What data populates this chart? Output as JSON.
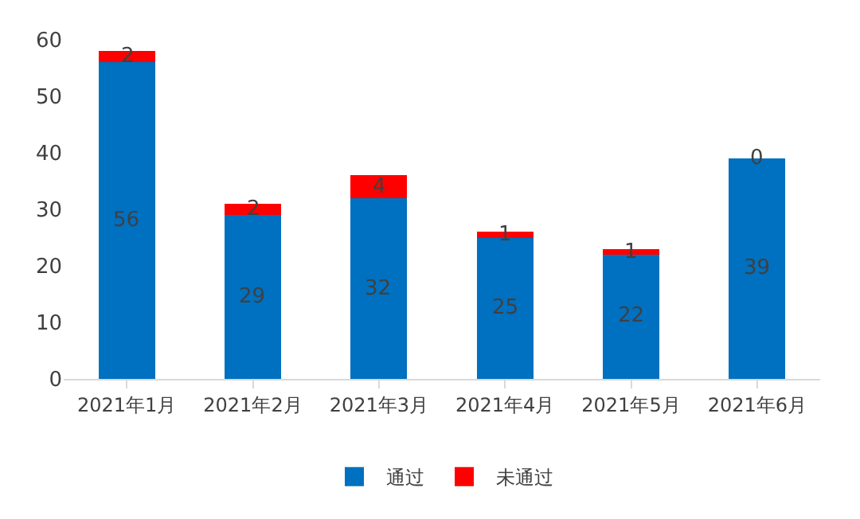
{
  "chart_data": {
    "type": "bar",
    "stacked": true,
    "categories": [
      "2021年1月",
      "2021年2月",
      "2021年3月",
      "2021年4月",
      "2021年5月",
      "2021年6月"
    ],
    "series": [
      {
        "name": "通过",
        "color": "#0070c0",
        "values": [
          56,
          29,
          32,
          25,
          22,
          39
        ]
      },
      {
        "name": "未通过",
        "color": "#ff0000",
        "values": [
          2,
          2,
          4,
          1,
          1,
          0
        ]
      }
    ],
    "ylim": [
      0,
      60
    ],
    "yticks": [
      0,
      10,
      20,
      30,
      40,
      50,
      60
    ],
    "data_labels": true,
    "legend": "bottom"
  }
}
